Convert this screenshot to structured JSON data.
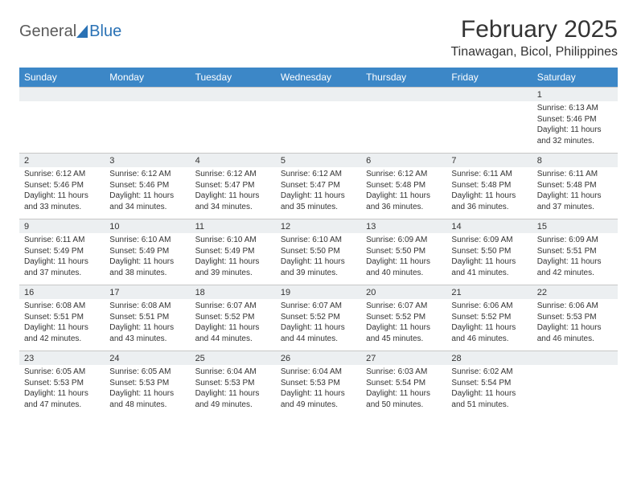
{
  "brand": {
    "name1": "General",
    "name2": "Blue"
  },
  "title": "February 2025",
  "location": "Tinawagan, Bicol, Philippines",
  "dayNames": [
    "Sunday",
    "Monday",
    "Tuesday",
    "Wednesday",
    "Thursday",
    "Friday",
    "Saturday"
  ],
  "colors": {
    "headerBg": "#3c87c7",
    "headerText": "#ffffff",
    "numRowBg": "#eceff1",
    "border": "#c7c7c7",
    "text": "#333333",
    "brandGray": "#5a5a5a",
    "brandBlue": "#2a72b5"
  },
  "weeks": [
    {
      "nums": [
        "",
        "",
        "",
        "",
        "",
        "",
        "1"
      ],
      "cells": [
        null,
        null,
        null,
        null,
        null,
        null,
        {
          "sunrise": "Sunrise: 6:13 AM",
          "sunset": "Sunset: 5:46 PM",
          "daylight": "Daylight: 11 hours and 32 minutes."
        }
      ]
    },
    {
      "nums": [
        "2",
        "3",
        "4",
        "5",
        "6",
        "7",
        "8"
      ],
      "cells": [
        {
          "sunrise": "Sunrise: 6:12 AM",
          "sunset": "Sunset: 5:46 PM",
          "daylight": "Daylight: 11 hours and 33 minutes."
        },
        {
          "sunrise": "Sunrise: 6:12 AM",
          "sunset": "Sunset: 5:46 PM",
          "daylight": "Daylight: 11 hours and 34 minutes."
        },
        {
          "sunrise": "Sunrise: 6:12 AM",
          "sunset": "Sunset: 5:47 PM",
          "daylight": "Daylight: 11 hours and 34 minutes."
        },
        {
          "sunrise": "Sunrise: 6:12 AM",
          "sunset": "Sunset: 5:47 PM",
          "daylight": "Daylight: 11 hours and 35 minutes."
        },
        {
          "sunrise": "Sunrise: 6:12 AM",
          "sunset": "Sunset: 5:48 PM",
          "daylight": "Daylight: 11 hours and 36 minutes."
        },
        {
          "sunrise": "Sunrise: 6:11 AM",
          "sunset": "Sunset: 5:48 PM",
          "daylight": "Daylight: 11 hours and 36 minutes."
        },
        {
          "sunrise": "Sunrise: 6:11 AM",
          "sunset": "Sunset: 5:48 PM",
          "daylight": "Daylight: 11 hours and 37 minutes."
        }
      ]
    },
    {
      "nums": [
        "9",
        "10",
        "11",
        "12",
        "13",
        "14",
        "15"
      ],
      "cells": [
        {
          "sunrise": "Sunrise: 6:11 AM",
          "sunset": "Sunset: 5:49 PM",
          "daylight": "Daylight: 11 hours and 37 minutes."
        },
        {
          "sunrise": "Sunrise: 6:10 AM",
          "sunset": "Sunset: 5:49 PM",
          "daylight": "Daylight: 11 hours and 38 minutes."
        },
        {
          "sunrise": "Sunrise: 6:10 AM",
          "sunset": "Sunset: 5:49 PM",
          "daylight": "Daylight: 11 hours and 39 minutes."
        },
        {
          "sunrise": "Sunrise: 6:10 AM",
          "sunset": "Sunset: 5:50 PM",
          "daylight": "Daylight: 11 hours and 39 minutes."
        },
        {
          "sunrise": "Sunrise: 6:09 AM",
          "sunset": "Sunset: 5:50 PM",
          "daylight": "Daylight: 11 hours and 40 minutes."
        },
        {
          "sunrise": "Sunrise: 6:09 AM",
          "sunset": "Sunset: 5:50 PM",
          "daylight": "Daylight: 11 hours and 41 minutes."
        },
        {
          "sunrise": "Sunrise: 6:09 AM",
          "sunset": "Sunset: 5:51 PM",
          "daylight": "Daylight: 11 hours and 42 minutes."
        }
      ]
    },
    {
      "nums": [
        "16",
        "17",
        "18",
        "19",
        "20",
        "21",
        "22"
      ],
      "cells": [
        {
          "sunrise": "Sunrise: 6:08 AM",
          "sunset": "Sunset: 5:51 PM",
          "daylight": "Daylight: 11 hours and 42 minutes."
        },
        {
          "sunrise": "Sunrise: 6:08 AM",
          "sunset": "Sunset: 5:51 PM",
          "daylight": "Daylight: 11 hours and 43 minutes."
        },
        {
          "sunrise": "Sunrise: 6:07 AM",
          "sunset": "Sunset: 5:52 PM",
          "daylight": "Daylight: 11 hours and 44 minutes."
        },
        {
          "sunrise": "Sunrise: 6:07 AM",
          "sunset": "Sunset: 5:52 PM",
          "daylight": "Daylight: 11 hours and 44 minutes."
        },
        {
          "sunrise": "Sunrise: 6:07 AM",
          "sunset": "Sunset: 5:52 PM",
          "daylight": "Daylight: 11 hours and 45 minutes."
        },
        {
          "sunrise": "Sunrise: 6:06 AM",
          "sunset": "Sunset: 5:52 PM",
          "daylight": "Daylight: 11 hours and 46 minutes."
        },
        {
          "sunrise": "Sunrise: 6:06 AM",
          "sunset": "Sunset: 5:53 PM",
          "daylight": "Daylight: 11 hours and 46 minutes."
        }
      ]
    },
    {
      "nums": [
        "23",
        "24",
        "25",
        "26",
        "27",
        "28",
        ""
      ],
      "cells": [
        {
          "sunrise": "Sunrise: 6:05 AM",
          "sunset": "Sunset: 5:53 PM",
          "daylight": "Daylight: 11 hours and 47 minutes."
        },
        {
          "sunrise": "Sunrise: 6:05 AM",
          "sunset": "Sunset: 5:53 PM",
          "daylight": "Daylight: 11 hours and 48 minutes."
        },
        {
          "sunrise": "Sunrise: 6:04 AM",
          "sunset": "Sunset: 5:53 PM",
          "daylight": "Daylight: 11 hours and 49 minutes."
        },
        {
          "sunrise": "Sunrise: 6:04 AM",
          "sunset": "Sunset: 5:53 PM",
          "daylight": "Daylight: 11 hours and 49 minutes."
        },
        {
          "sunrise": "Sunrise: 6:03 AM",
          "sunset": "Sunset: 5:54 PM",
          "daylight": "Daylight: 11 hours and 50 minutes."
        },
        {
          "sunrise": "Sunrise: 6:02 AM",
          "sunset": "Sunset: 5:54 PM",
          "daylight": "Daylight: 11 hours and 51 minutes."
        },
        null
      ]
    }
  ]
}
